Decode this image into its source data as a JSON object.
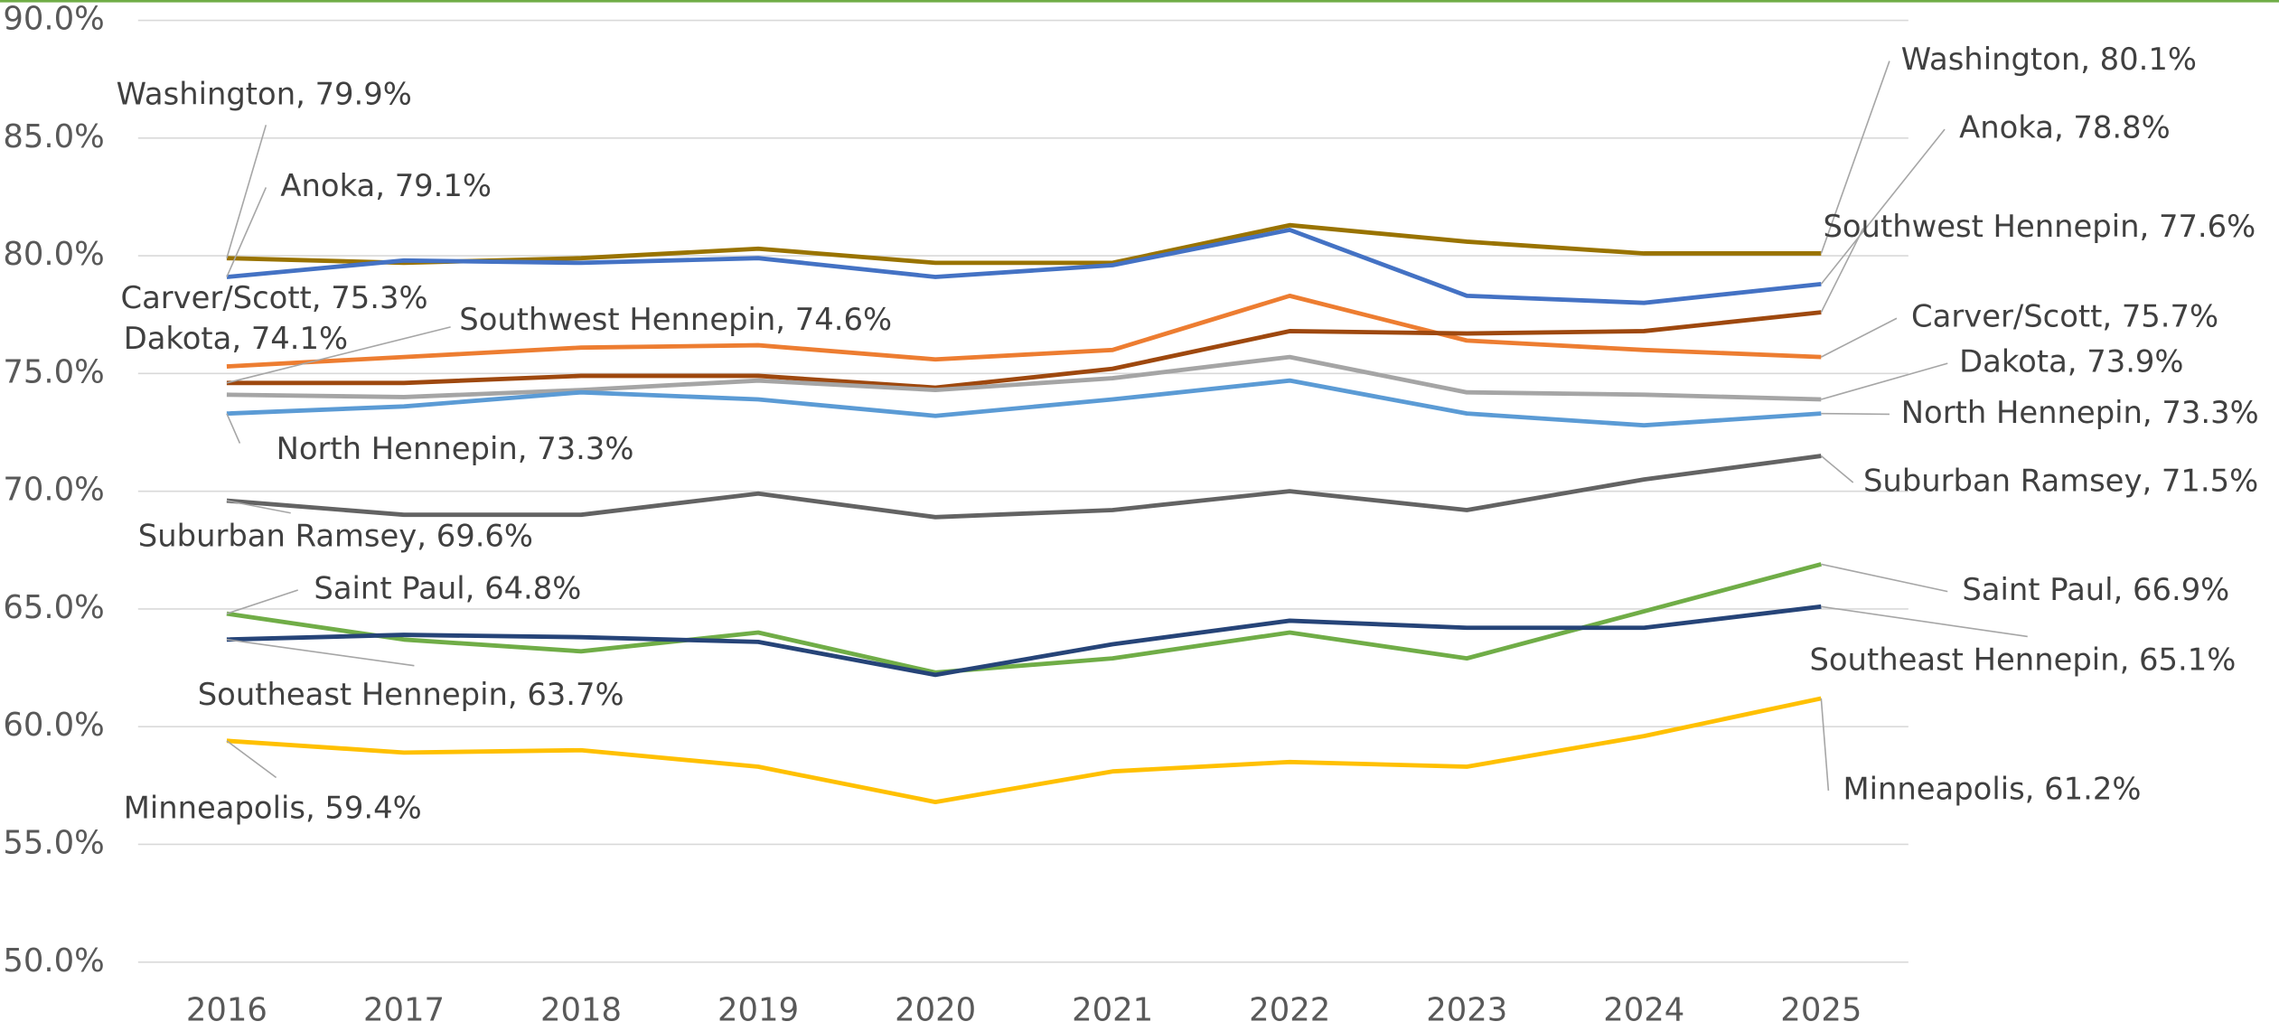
{
  "chart_data": {
    "type": "line",
    "categories": [
      "2016",
      "2017",
      "2018",
      "2019",
      "2020",
      "2021",
      "2022",
      "2023",
      "2024",
      "2025"
    ],
    "ylim": [
      50,
      90
    ],
    "yticks": [
      {
        "value": 50,
        "label": "50.0%"
      },
      {
        "value": 55,
        "label": "55.0%"
      },
      {
        "value": 60,
        "label": "60.0%"
      },
      {
        "value": 65,
        "label": "65.0%"
      },
      {
        "value": 70,
        "label": "70.0%"
      },
      {
        "value": 75,
        "label": "75.0%"
      },
      {
        "value": 80,
        "label": "80.0%"
      },
      {
        "value": 85,
        "label": "85.0%"
      },
      {
        "value": 90,
        "label": "90.0%"
      }
    ],
    "grid": true,
    "series": [
      {
        "name": "Washington",
        "color": "#997300",
        "values": [
          79.9,
          79.7,
          79.9,
          80.3,
          79.7,
          79.7,
          81.3,
          80.6,
          80.1,
          80.1
        ],
        "value_labels": [
          "Washington, 79.9%",
          null,
          null,
          null,
          null,
          null,
          null,
          null,
          null,
          "Washington, 80.1%"
        ]
      },
      {
        "name": "Anoka",
        "color": "#4472c4",
        "values": [
          79.1,
          79.8,
          79.7,
          79.9,
          79.1,
          79.6,
          81.1,
          78.3,
          78.0,
          78.8
        ],
        "value_labels": [
          "Anoka, 79.1%",
          null,
          null,
          null,
          null,
          null,
          null,
          null,
          null,
          "Anoka, 78.8%"
        ]
      },
      {
        "name": "Carver/Scott",
        "color": "#ed7d31",
        "values": [
          75.3,
          75.7,
          76.1,
          76.2,
          75.6,
          76.0,
          78.3,
          76.4,
          76.0,
          75.7
        ],
        "value_labels": [
          "Carver/Scott, 75.3%",
          null,
          null,
          null,
          null,
          null,
          null,
          null,
          null,
          "Carver/Scott, 75.7%"
        ]
      },
      {
        "name": "Southwest Hennepin",
        "color": "#9e480e",
        "values": [
          74.6,
          74.6,
          74.9,
          74.9,
          74.4,
          75.2,
          76.8,
          76.7,
          76.8,
          77.6
        ],
        "value_labels": [
          "Southwest Hennepin, 74.6%",
          null,
          null,
          null,
          null,
          null,
          null,
          null,
          null,
          "Southwest Hennepin, 77.6%"
        ]
      },
      {
        "name": "Dakota",
        "color": "#a5a5a5",
        "values": [
          74.1,
          74.0,
          74.3,
          74.7,
          74.3,
          74.8,
          75.7,
          74.2,
          74.1,
          73.9
        ],
        "value_labels": [
          "Dakota, 74.1%",
          null,
          null,
          null,
          null,
          null,
          null,
          null,
          null,
          "Dakota, 73.9%"
        ]
      },
      {
        "name": "North Hennepin",
        "color": "#5b9bd5",
        "values": [
          73.3,
          73.6,
          74.2,
          73.9,
          73.2,
          73.9,
          74.7,
          73.3,
          72.8,
          73.3
        ],
        "value_labels": [
          "North Hennepin, 73.3%",
          null,
          null,
          null,
          null,
          null,
          null,
          null,
          null,
          "North Hennepin, 73.3%"
        ]
      },
      {
        "name": "Suburban Ramsey",
        "color": "#636363",
        "values": [
          69.6,
          69.0,
          69.0,
          69.9,
          68.9,
          69.2,
          70.0,
          69.2,
          70.5,
          71.5
        ],
        "value_labels": [
          "Suburban Ramsey, 69.6%",
          null,
          null,
          null,
          null,
          null,
          null,
          null,
          null,
          "Suburban Ramsey, 71.5%"
        ]
      },
      {
        "name": "Saint Paul",
        "color": "#70ad47",
        "values": [
          64.8,
          63.7,
          63.2,
          64.0,
          62.3,
          62.9,
          64.0,
          62.9,
          64.9,
          66.9
        ],
        "value_labels": [
          "Saint Paul, 64.8%",
          null,
          null,
          null,
          null,
          null,
          null,
          null,
          null,
          "Saint Paul, 66.9%"
        ]
      },
      {
        "name": "Southeast Hennepin",
        "color": "#264478",
        "values": [
          63.7,
          63.9,
          63.8,
          63.6,
          62.2,
          63.5,
          64.5,
          64.2,
          64.2,
          65.1
        ],
        "value_labels": [
          "Southeast Hennepin, 63.7%",
          null,
          null,
          null,
          null,
          null,
          null,
          null,
          null,
          "Southeast Hennepin, 65.1%"
        ]
      },
      {
        "name": "Minneapolis",
        "color": "#ffc000",
        "values": [
          59.4,
          58.9,
          59.0,
          58.3,
          56.8,
          58.1,
          58.5,
          58.3,
          59.6,
          61.2
        ],
        "value_labels": [
          "Minneapolis, 59.4%",
          null,
          null,
          null,
          null,
          null,
          null,
          null,
          null,
          "Minneapolis, 61.2%"
        ]
      }
    ]
  }
}
